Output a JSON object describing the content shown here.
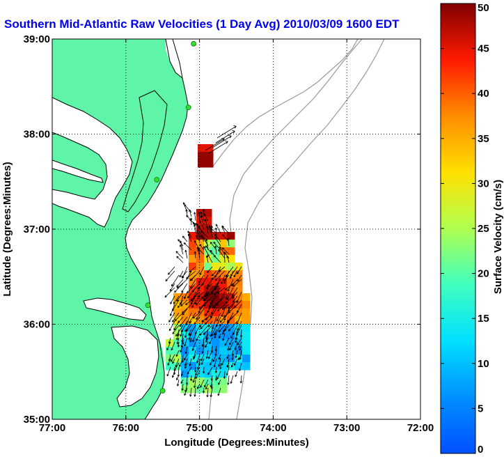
{
  "title": "Southern Mid-Atlantic Raw Velocities (1 Day Avg) 2010/03/09 1600 EDT",
  "map": {
    "xlabel": "Longitude (Degrees:Minutes)",
    "ylabel": "Latitude (Degrees:Minutes)",
    "lon_range": [
      -77,
      -72
    ],
    "lat_range": [
      35,
      39
    ],
    "x_ticks": [
      {
        "lon": -77,
        "label": "77:00"
      },
      {
        "lon": -76,
        "label": "76:00"
      },
      {
        "lon": -75,
        "label": "75:00"
      },
      {
        "lon": -74,
        "label": "74:00"
      },
      {
        "lon": -73,
        "label": "73:00"
      },
      {
        "lon": -72,
        "label": "72:00"
      }
    ],
    "y_ticks": [
      {
        "lat": 35,
        "label": "35:00"
      },
      {
        "lat": 36,
        "label": "36:00"
      },
      {
        "lat": 37,
        "label": "37:00"
      },
      {
        "lat": 38,
        "label": "38:00"
      },
      {
        "lat": 39,
        "label": "39:00"
      }
    ],
    "grid": "dotted",
    "land_color": "#5ef5a8",
    "water_color": "#ffffff",
    "bathymetry_color": "#999999",
    "station_color": "#33dd33",
    "stations": [
      {
        "lon": -75.08,
        "lat": 38.95
      },
      {
        "lon": -75.15,
        "lat": 38.28
      },
      {
        "lon": -75.58,
        "lat": 37.52
      },
      {
        "lon": -75.7,
        "lat": 36.2
      },
      {
        "lon": -75.5,
        "lat": 35.3
      }
    ]
  },
  "colorbar": {
    "label": "Surface Velocity (cm/s)",
    "min": 0,
    "max": 50,
    "ticks": [
      {
        "value": 0,
        "label": "0"
      },
      {
        "value": 5,
        "label": "5"
      },
      {
        "value": 10,
        "label": "10"
      },
      {
        "value": 15,
        "label": "15"
      },
      {
        "value": 20,
        "label": "20"
      },
      {
        "value": 25,
        "label": "25"
      },
      {
        "value": 30,
        "label": "30"
      },
      {
        "value": 35,
        "label": "35"
      },
      {
        "value": 40,
        "label": "40"
      },
      {
        "value": 45,
        "label": "45"
      },
      {
        "value": 50,
        "label": "50"
      }
    ]
  }
}
